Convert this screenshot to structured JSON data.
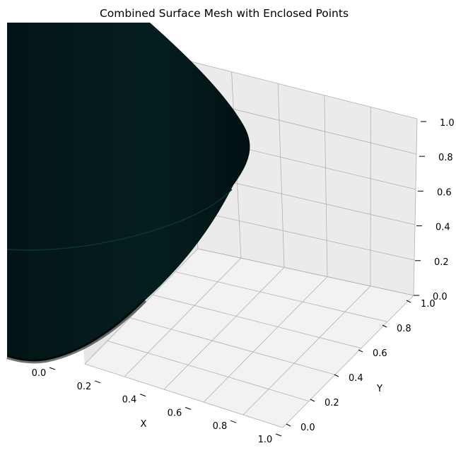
{
  "chart_data": {
    "type": "3d-surface",
    "title": "Combined Surface Mesh with Enclosed Points",
    "xlabel": "X",
    "ylabel": "Y",
    "zlabel": "",
    "xlim": [
      0.0,
      1.0
    ],
    "ylim": [
      0.0,
      1.0
    ],
    "zlim": [
      0.0,
      1.0
    ],
    "x_ticks": [
      "0.0",
      "0.2",
      "0.4",
      "0.6",
      "0.8",
      "1.0"
    ],
    "y_ticks": [
      "0.0",
      "0.2",
      "0.4",
      "0.6",
      "0.8",
      "1.0"
    ],
    "z_ticks": [
      "0.0",
      "0.2",
      "0.4",
      "0.6",
      "0.8",
      "1.0"
    ],
    "grid": true,
    "surface_color": "#041e20",
    "pane_colors": [
      "#f2f2f2",
      "#ebebeb",
      "#e6e6e6"
    ]
  }
}
